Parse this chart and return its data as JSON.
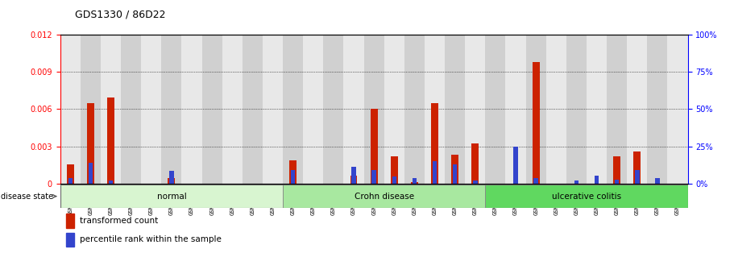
{
  "title": "GDS1330 / 86D22",
  "samples": [
    "GSM29595",
    "GSM29596",
    "GSM29597",
    "GSM29598",
    "GSM29599",
    "GSM29600",
    "GSM29601",
    "GSM29602",
    "GSM29603",
    "GSM29604",
    "GSM29605",
    "GSM29606",
    "GSM29607",
    "GSM29608",
    "GSM29609",
    "GSM29610",
    "GSM29611",
    "GSM29612",
    "GSM29613",
    "GSM29614",
    "GSM29615",
    "GSM29616",
    "GSM29617",
    "GSM29618",
    "GSM29619",
    "GSM29620",
    "GSM29621",
    "GSM29622",
    "GSM29623",
    "GSM29624",
    "GSM29625"
  ],
  "transformed_count": [
    0.00155,
    0.00645,
    0.00695,
    0.0,
    0.0,
    0.00045,
    0.0,
    0.0,
    0.0,
    0.0,
    0.0,
    0.00185,
    0.0,
    0.0,
    0.00065,
    0.006,
    0.0022,
    8e-05,
    0.0065,
    0.0023,
    0.0032,
    0.0,
    0.0,
    0.0098,
    0.0,
    0.0,
    0.0,
    0.0022,
    0.0026,
    0.0,
    0.0
  ],
  "percentile_rank": [
    3.5,
    14.0,
    2.0,
    0.0,
    0.0,
    8.5,
    0.0,
    0.0,
    0.0,
    0.0,
    0.0,
    9.0,
    0.0,
    0.0,
    11.0,
    9.0,
    4.5,
    3.5,
    15.0,
    13.0,
    2.0,
    0.0,
    25.0,
    3.5,
    0.0,
    2.0,
    5.0,
    2.5,
    9.0,
    3.5,
    0.0
  ],
  "disease_groups": [
    {
      "label": "normal",
      "start": 0,
      "end": 10,
      "color": "#d8f5d0"
    },
    {
      "label": "Crohn disease",
      "start": 11,
      "end": 20,
      "color": "#a8e8a0"
    },
    {
      "label": "ulcerative colitis",
      "start": 21,
      "end": 30,
      "color": "#60d860"
    }
  ],
  "ylim_left": [
    0,
    0.012
  ],
  "ylim_right": [
    0,
    100
  ],
  "yticks_left": [
    0,
    0.003,
    0.006,
    0.009,
    0.012
  ],
  "yticks_right": [
    0,
    25,
    50,
    75,
    100
  ],
  "bar_color_red": "#cc2200",
  "bar_color_blue": "#3344cc",
  "col_bg_odd": "#e8e8e8",
  "col_bg_even": "#d0d0d0",
  "plot_bg": "#ffffff",
  "legend_red": "transformed count",
  "legend_blue": "percentile rank within the sample",
  "disease_state_label": "disease state"
}
